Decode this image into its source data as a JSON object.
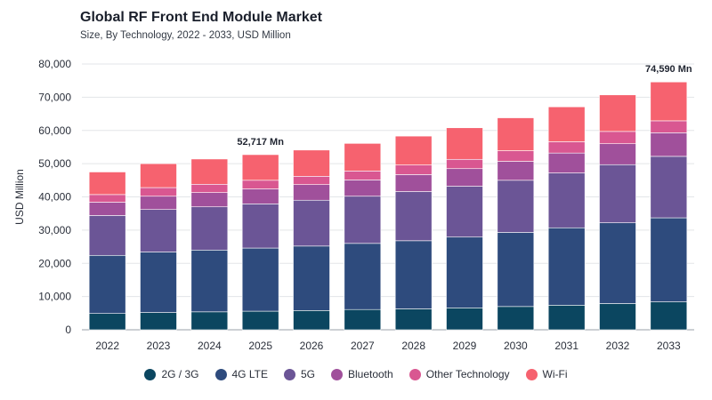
{
  "header": {
    "title": "Global RF Front End Module Market",
    "subtitle": "Size, By Technology, 2022 - 2033, USD Million"
  },
  "chart_data": {
    "type": "bar",
    "stacked": true,
    "ylabel": "USD Million",
    "xlabel": "",
    "ylim": [
      0,
      80000
    ],
    "yticks": [
      0,
      10000,
      20000,
      30000,
      40000,
      50000,
      60000,
      70000,
      80000
    ],
    "ytick_labels": [
      "0",
      "10,000",
      "20,000",
      "30,000",
      "40,000",
      "50,000",
      "60,000",
      "70,000",
      "80,000"
    ],
    "grid": "horizontal",
    "legend_position": "bottom",
    "categories": [
      "2022",
      "2023",
      "2024",
      "2025",
      "2026",
      "2027",
      "2028",
      "2029",
      "2030",
      "2031",
      "2032",
      "2033"
    ],
    "series": [
      {
        "name": "2G / 3G",
        "color": "#0b4660",
        "values": [
          4900,
          5200,
          5400,
          5600,
          5800,
          6100,
          6300,
          6600,
          7000,
          7400,
          7900,
          8400
        ]
      },
      {
        "name": "4G LTE",
        "color": "#2e4b7d",
        "values": [
          17500,
          18200,
          18600,
          19000,
          19400,
          19900,
          20500,
          21300,
          22300,
          23300,
          24300,
          25300
        ]
      },
      {
        "name": "5G",
        "color": "#6b5596",
        "values": [
          12000,
          12800,
          13000,
          13300,
          13800,
          14200,
          14800,
          15300,
          15700,
          16500,
          17500,
          18500
        ]
      },
      {
        "name": "Bluetooth",
        "color": "#a0509b",
        "values": [
          4000,
          4000,
          4300,
          4500,
          4700,
          4900,
          5100,
          5300,
          5700,
          6000,
          6300,
          7100
        ]
      },
      {
        "name": "Other Technology",
        "color": "#d95791",
        "values": [
          2300,
          2600,
          2500,
          2600,
          2500,
          2700,
          2900,
          2800,
          3200,
          3400,
          3700,
          3600
        ]
      },
      {
        "name": "Wi-Fi",
        "color": "#f6626f",
        "values": [
          6800,
          7200,
          7600,
          7717,
          7900,
          8300,
          8700,
          9500,
          9900,
          10500,
          11000,
          11690
        ]
      }
    ],
    "annotations": [
      {
        "category": "2025",
        "text": "52,717 Mn"
      },
      {
        "category": "2033",
        "text": "74,590 Mn"
      }
    ]
  }
}
